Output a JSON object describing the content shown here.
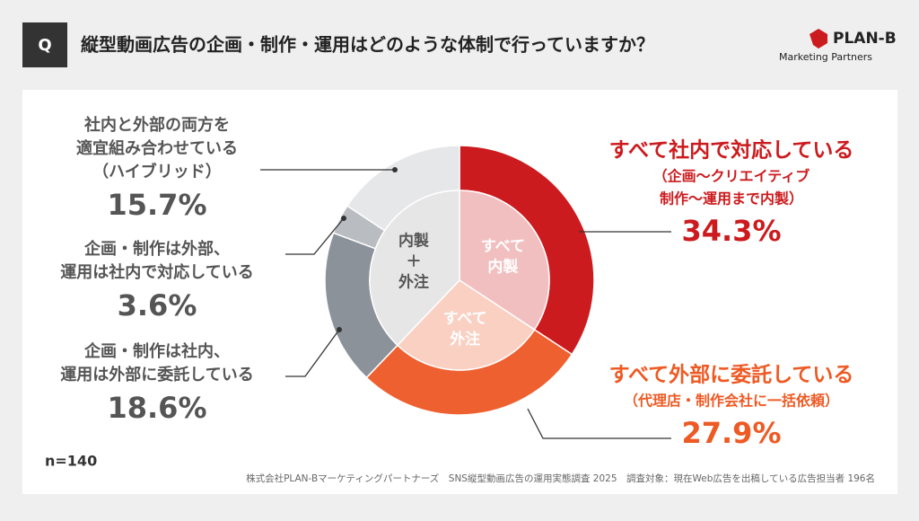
{
  "header": {
    "badge": "Q",
    "title": "縦型動画広告の企画・制作・運用はどのような体制で行っていますか？",
    "logo": "PLAN-B",
    "logo_sub": "Marketing Partners"
  },
  "chart_data": {
    "type": "donut",
    "categories": [
      [
        "すべて社内で対応している"
      ],
      [
        "すべて外部に委託している"
      ],
      [
        "企画・制作は社内、",
        "運用は外部に委託している"
      ],
      [
        "企画・制作は外部、",
        "運用は社内で対応している"
      ],
      [
        "社内と外部の両方を",
        "適宜組み合わせている",
        "（ハイブリッド）"
      ]
    ],
    "notes": [
      [
        "（企画〜クリエイティブ",
        "制作〜運用まで内製）"
      ],
      [
        "（代理店・制作会社に一括依頼）"
      ],
      null,
      null,
      null
    ],
    "values": [
      34.3,
      27.9,
      18.6,
      3.6,
      15.7
    ],
    "value_labels": [
      "34.3%",
      "27.9%",
      "18.6%",
      "3.6%",
      "15.7%"
    ],
    "colors": [
      "#cc1b1e",
      "#ef6030",
      "#8b9299",
      "#b9bdc2",
      "#e6e7e9"
    ],
    "inner": {
      "categories": [
        [
          "すべて",
          "内製"
        ],
        [
          "すべて",
          "外注"
        ],
        [
          "内製",
          "＋",
          "外注"
        ]
      ],
      "values": [
        34.3,
        27.9,
        37.9
      ],
      "colors": [
        "#f2bfc0",
        "#f9d0c2",
        "#e6e6e7"
      ]
    }
  },
  "footer": {
    "n": "n=140",
    "source": "株式会社PLAN-Bマーケティングパートナーズ　SNS縦型動画広告の運用実態調査 2025　調査対象：現在Web広告を出稿している広告担当者 196名"
  }
}
